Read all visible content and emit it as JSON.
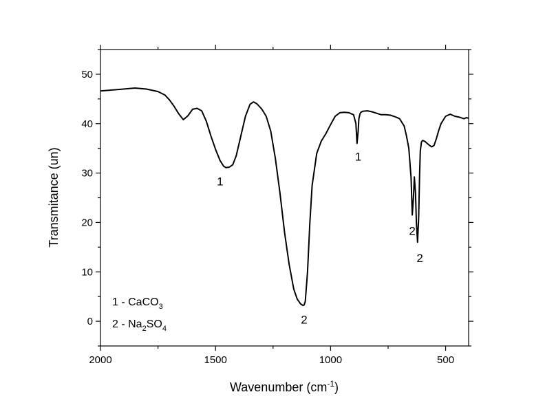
{
  "chart_data": {
    "type": "line",
    "title": "",
    "xlabel": "Wavenumber (cm",
    "xlabel_sup": "-1",
    "xlabel_end": ")",
    "ylabel": "Transmitance (un)",
    "xlim": [
      2000,
      400
    ],
    "x_reversed": true,
    "ylim": [
      -5,
      55
    ],
    "x_ticks": [
      2000,
      1500,
      1000,
      500
    ],
    "y_ticks": [
      0,
      10,
      20,
      30,
      40,
      50
    ],
    "grid": false,
    "line_color": "#000000",
    "series": [
      {
        "x": [
          2000,
          1950,
          1900,
          1850,
          1800,
          1750,
          1720,
          1700,
          1680,
          1660,
          1640,
          1620,
          1600,
          1580,
          1560,
          1540,
          1520,
          1500,
          1480,
          1465,
          1455,
          1440,
          1425,
          1410,
          1390,
          1370,
          1350,
          1335,
          1320,
          1300,
          1280,
          1260,
          1240,
          1220,
          1200,
          1180,
          1160,
          1145,
          1130,
          1120,
          1115,
          1110,
          1100,
          1090,
          1080,
          1060,
          1040,
          1020,
          1000,
          980,
          960,
          940,
          920,
          900,
          890,
          885,
          880,
          877,
          872,
          868,
          860,
          840,
          820,
          800,
          780,
          760,
          740,
          720,
          700,
          680,
          670,
          660,
          650,
          645,
          640,
          636,
          631,
          627,
          622,
          617,
          613,
          610,
          605,
          600,
          590,
          580,
          570,
          560,
          550,
          540,
          530,
          520,
          500,
          480,
          460,
          440,
          420,
          410,
          400
        ],
        "y": [
          46.6,
          46.8,
          47.0,
          47.2,
          47.0,
          46.5,
          45.8,
          44.8,
          43.5,
          42.0,
          40.8,
          41.6,
          42.9,
          43.1,
          42.6,
          40.5,
          37.5,
          34.8,
          32.5,
          31.4,
          31.1,
          31.2,
          31.7,
          33.5,
          37.5,
          41.5,
          43.9,
          44.4,
          44.0,
          43.0,
          41.5,
          38.5,
          33.0,
          26.0,
          18.0,
          11.5,
          6.5,
          4.5,
          3.5,
          3.2,
          3.3,
          4.0,
          10.0,
          20.0,
          27.5,
          34.0,
          36.5,
          38.0,
          39.8,
          41.5,
          42.2,
          42.3,
          42.2,
          41.8,
          40.0,
          36.0,
          38.5,
          41.0,
          42.0,
          42.3,
          42.5,
          42.6,
          42.4,
          42.1,
          41.8,
          41.8,
          41.7,
          41.4,
          41.0,
          39.5,
          37.5,
          35.0,
          29.0,
          21.5,
          25.0,
          29.2,
          26.0,
          20.0,
          16.0,
          21.0,
          30.0,
          34.5,
          36.3,
          36.6,
          36.4,
          36.0,
          35.6,
          35.3,
          35.6,
          37.0,
          38.6,
          40.0,
          41.5,
          41.9,
          41.5,
          41.3,
          41.0,
          41.2,
          41.1
        ]
      }
    ],
    "peak_labels": [
      {
        "text": "1",
        "x": 1480,
        "y": 27.5
      },
      {
        "text": "2",
        "x": 1115,
        "y": -0.5
      },
      {
        "text": "1",
        "x": 880,
        "y": 32.5
      },
      {
        "text": "2",
        "x": 645,
        "y": 17.5
      },
      {
        "text": "2",
        "x": 612,
        "y": 12.0
      }
    ],
    "legend": [
      {
        "num": "1 - CaCO",
        "sub": "3",
        "tail": ""
      },
      {
        "num": "2 - Na",
        "sub": "2",
        "tail": "SO",
        "sub2": "4"
      }
    ]
  }
}
